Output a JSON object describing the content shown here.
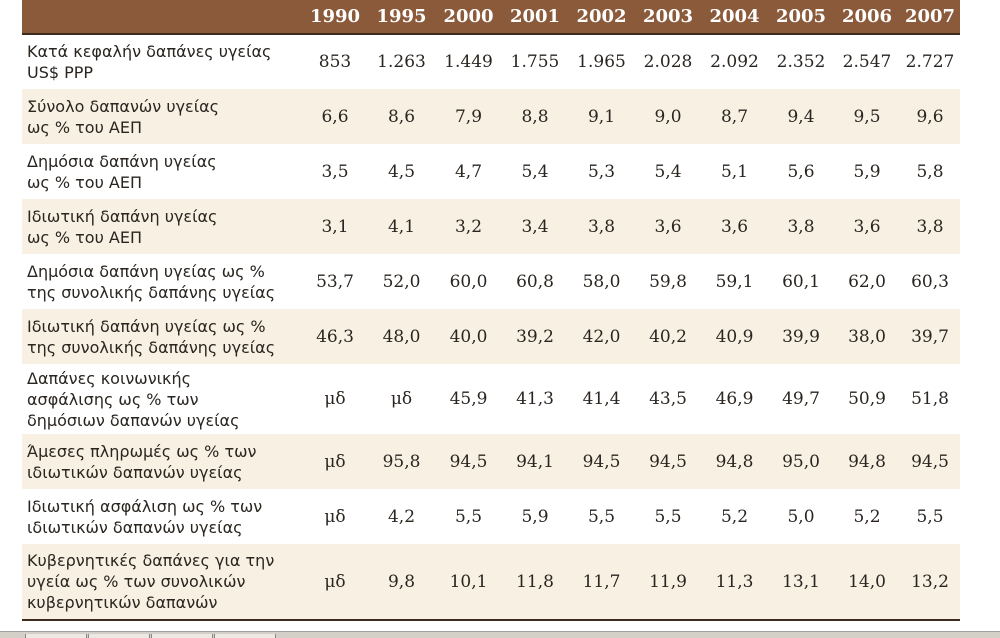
{
  "table": {
    "header_label": "",
    "years": [
      "1990",
      "1995",
      "2000",
      "2001",
      "2002",
      "2003",
      "2004",
      "2005",
      "2006",
      "2007"
    ],
    "rows": [
      {
        "label_lines": [
          "Κατά κεφαλήν δαπάνες υγείας",
          "US$ PPP"
        ],
        "values": [
          "853",
          "1.263",
          "1.449",
          "1.755",
          "1.965",
          "2.028",
          "2.092",
          "2.352",
          "2.547",
          "2.727"
        ]
      },
      {
        "label_lines": [
          "Σύνολο δαπανών υγείας",
          "ως % του ΑΕΠ"
        ],
        "values": [
          "6,6",
          "8,6",
          "7,9",
          "8,8",
          "9,1",
          "9,0",
          "8,7",
          "9,4",
          "9,5",
          "9,6"
        ]
      },
      {
        "label_lines": [
          "Δημόσια δαπάνη υγείας",
          "ως % του ΑΕΠ"
        ],
        "values": [
          "3,5",
          "4,5",
          "4,7",
          "5,4",
          "5,3",
          "5,4",
          "5,1",
          "5,6",
          "5,9",
          "5,8"
        ]
      },
      {
        "label_lines": [
          "Ιδιωτική δαπάνη υγείας",
          "ως % του ΑΕΠ"
        ],
        "values": [
          "3,1",
          "4,1",
          "3,2",
          "3,4",
          "3,8",
          "3,6",
          "3,6",
          "3,8",
          "3,6",
          "3,8"
        ]
      },
      {
        "label_lines": [
          "Δημόσια δαπάνη υγείας ως %",
          "της συνολικής δαπάνης υγείας"
        ],
        "values": [
          "53,7",
          "52,0",
          "60,0",
          "60,8",
          "58,0",
          "59,8",
          "59,1",
          "60,1",
          "62,0",
          "60,3"
        ]
      },
      {
        "label_lines": [
          "Ιδιωτική δαπάνη υγείας ως %",
          "της συνολικής δαπάνης υγείας"
        ],
        "values": [
          "46,3",
          "48,0",
          "40,0",
          "39,2",
          "42,0",
          "40,2",
          "40,9",
          "39,9",
          "38,0",
          "39,7"
        ]
      },
      {
        "label_lines": [
          "Δαπάνες κοινωνικής",
          "ασφάλισης ως % των",
          "δημόσιων δαπανών υγείας"
        ],
        "values": [
          "μδ",
          "μδ",
          "45,9",
          "41,3",
          "41,4",
          "43,5",
          "46,9",
          "49,7",
          "50,9",
          "51,8"
        ]
      },
      {
        "label_lines": [
          "Άμεσες πληρωμές ως % των",
          "ιδιωτικών δαπανών υγείας"
        ],
        "values": [
          "μδ",
          "95,8",
          "94,5",
          "94,1",
          "94,5",
          "94,5",
          "94,8",
          "95,0",
          "94,8",
          "94,5"
        ]
      },
      {
        "label_lines": [
          "Ιδιωτική ασφάλιση ως % των",
          "ιδιωτικών δαπανών υγείας"
        ],
        "values": [
          "μδ",
          "4,2",
          "5,5",
          "5,9",
          "5,5",
          "5,5",
          "5,2",
          "5,0",
          "5,2",
          "5,5"
        ]
      },
      {
        "label_lines": [
          "Κυβερνητικές δαπάνες για την",
          "υγεία ως % των συνολικών",
          "κυβερνητικών δαπανών"
        ],
        "values": [
          "μδ",
          "9,8",
          "10,1",
          "11,8",
          "11,7",
          "11,9",
          "11,3",
          "13,1",
          "14,0",
          "13,2"
        ]
      }
    ]
  },
  "colors": {
    "header_bg": "#8a5a3a",
    "header_text": "#ffffff",
    "shaded_row": "#f8f0e2",
    "rule": "#3d2c1e"
  }
}
